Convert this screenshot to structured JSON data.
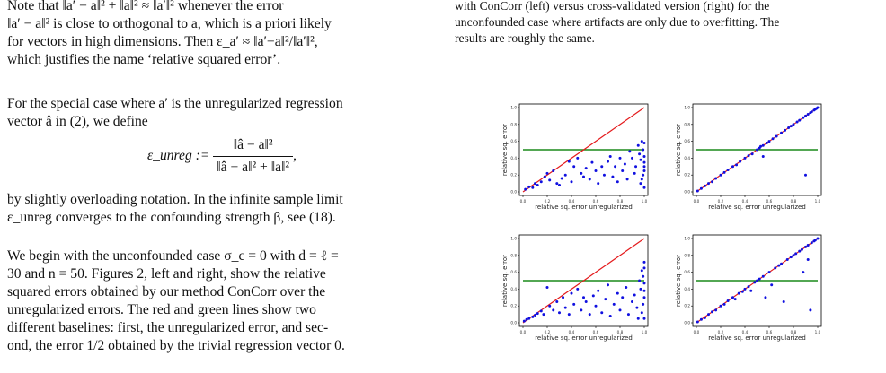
{
  "left": {
    "p1_lines": [
      "Note that ‖a′ − a‖² + ‖a‖² ≈ ‖a′‖² whenever the error",
      "‖a′ − a‖² is close to orthogonal to a, which is a priori likely",
      "for vectors in high dimensions. Then ε_a′ ≈ ‖a′−a‖²/‖a′‖²,",
      "which justifies the name ‘relative squared error’."
    ],
    "p2_lines": [
      "For the special case where a′ is the unregularized regression",
      "vector â in (2), we define"
    ],
    "eq_lhs": "ε_unreg :=",
    "eq_num": "‖â − a‖²",
    "eq_den": "‖â − a‖² + ‖a‖²",
    "eq_tail": ",",
    "p3_lines": [
      "by slightly overloading notation. In the infinite sample limit",
      "ε_unreg converges to the confounding strength β, see (18)."
    ],
    "p4_lines": [
      "We begin with the unconfounded case σ_c = 0 with d = ℓ =",
      "30 and n = 50. Figures 2, left and right, show the relative",
      "squared errors obtained by our method ConCorr over the",
      "unregularized errors. The red and green lines show two",
      "different baselines: first, the unregularized error, and sec-",
      "ond, the error 1/2 obtained by the trivial regression vector 0."
    ]
  },
  "right": {
    "caption_lines": [
      "with ConCorr (left) versus cross-validated version (right) for the",
      "unconfounded case where artifacts are only due to overfitting. The",
      "results are roughly the same."
    ]
  },
  "plot_labels": {
    "xlabel": "relative sq. error unregularized",
    "ylabel": "relative sq. error",
    "ticks": [
      "0.0",
      "0.2",
      "0.4",
      "0.6",
      "0.8",
      "1.0"
    ]
  },
  "colors": {
    "identity_line": "#e41a1c",
    "baseline_line": "#1a8a1a",
    "points": "#1010e0"
  },
  "chart_data": [
    {
      "type": "scatter",
      "xlabel": "relative sq. error unregularized",
      "ylabel": "relative sq. error",
      "xlim": [
        0,
        1
      ],
      "ylim": [
        0,
        1
      ],
      "identity_line": true,
      "baseline_y": 0.5,
      "points": [
        [
          0.02,
          0.03
        ],
        [
          0.05,
          0.06
        ],
        [
          0.08,
          0.05
        ],
        [
          0.1,
          0.1
        ],
        [
          0.12,
          0.08
        ],
        [
          0.15,
          0.12
        ],
        [
          0.18,
          0.18
        ],
        [
          0.2,
          0.22
        ],
        [
          0.22,
          0.14
        ],
        [
          0.25,
          0.25
        ],
        [
          0.28,
          0.1
        ],
        [
          0.3,
          0.08
        ],
        [
          0.32,
          0.16
        ],
        [
          0.35,
          0.2
        ],
        [
          0.38,
          0.36
        ],
        [
          0.4,
          0.12
        ],
        [
          0.42,
          0.3
        ],
        [
          0.45,
          0.4
        ],
        [
          0.48,
          0.22
        ],
        [
          0.5,
          0.18
        ],
        [
          0.52,
          0.28
        ],
        [
          0.55,
          0.15
        ],
        [
          0.57,
          0.35
        ],
        [
          0.6,
          0.25
        ],
        [
          0.62,
          0.1
        ],
        [
          0.65,
          0.3
        ],
        [
          0.67,
          0.2
        ],
        [
          0.7,
          0.36
        ],
        [
          0.72,
          0.42
        ],
        [
          0.74,
          0.18
        ],
        [
          0.76,
          0.3
        ],
        [
          0.78,
          0.12
        ],
        [
          0.8,
          0.4
        ],
        [
          0.82,
          0.25
        ],
        [
          0.84,
          0.33
        ],
        [
          0.86,
          0.15
        ],
        [
          0.88,
          0.48
        ],
        [
          0.9,
          0.4
        ],
        [
          0.92,
          0.22
        ],
        [
          0.93,
          0.3
        ],
        [
          0.95,
          0.55
        ],
        [
          0.96,
          0.45
        ],
        [
          0.97,
          0.38
        ],
        [
          0.98,
          0.6
        ],
        [
          0.99,
          0.5
        ],
        [
          1.0,
          0.42
        ],
        [
          1.0,
          0.35
        ],
        [
          1.0,
          0.3
        ],
        [
          1.0,
          0.25
        ],
        [
          1.0,
          0.58
        ],
        [
          0.99,
          0.2
        ],
        [
          0.98,
          0.15
        ],
        [
          0.97,
          0.1
        ],
        [
          1.0,
          0.05
        ]
      ]
    },
    {
      "type": "scatter",
      "xlabel": "relative sq. error unregularized",
      "ylabel": "relative sq. error",
      "xlim": [
        0,
        1
      ],
      "ylim": [
        0,
        1
      ],
      "identity_line": true,
      "baseline_y": 0.5,
      "points": [
        [
          0.01,
          0.01
        ],
        [
          0.04,
          0.04
        ],
        [
          0.07,
          0.07
        ],
        [
          0.1,
          0.1
        ],
        [
          0.13,
          0.12
        ],
        [
          0.16,
          0.16
        ],
        [
          0.2,
          0.2
        ],
        [
          0.23,
          0.23
        ],
        [
          0.26,
          0.26
        ],
        [
          0.3,
          0.3
        ],
        [
          0.33,
          0.32
        ],
        [
          0.36,
          0.36
        ],
        [
          0.4,
          0.4
        ],
        [
          0.43,
          0.43
        ],
        [
          0.46,
          0.45
        ],
        [
          0.5,
          0.5
        ],
        [
          0.52,
          0.52
        ],
        [
          0.53,
          0.54
        ],
        [
          0.55,
          0.55
        ],
        [
          0.55,
          0.42
        ],
        [
          0.58,
          0.58
        ],
        [
          0.6,
          0.6
        ],
        [
          0.63,
          0.63
        ],
        [
          0.66,
          0.66
        ],
        [
          0.7,
          0.7
        ],
        [
          0.73,
          0.73
        ],
        [
          0.76,
          0.76
        ],
        [
          0.78,
          0.78
        ],
        [
          0.8,
          0.8
        ],
        [
          0.83,
          0.83
        ],
        [
          0.85,
          0.85
        ],
        [
          0.88,
          0.88
        ],
        [
          0.9,
          0.9
        ],
        [
          0.92,
          0.92
        ],
        [
          0.94,
          0.94
        ],
        [
          0.95,
          0.95
        ],
        [
          0.97,
          0.97
        ],
        [
          0.98,
          0.98
        ],
        [
          0.99,
          0.99
        ],
        [
          1.0,
          1.0
        ],
        [
          0.9,
          0.2
        ]
      ]
    },
    {
      "type": "scatter",
      "xlabel": "relative sq. error unregularized",
      "ylabel": "relative sq. error",
      "xlim": [
        0,
        1
      ],
      "ylim": [
        0,
        1
      ],
      "identity_line": true,
      "baseline_y": 0.5,
      "points": [
        [
          0.01,
          0.02
        ],
        [
          0.03,
          0.04
        ],
        [
          0.05,
          0.05
        ],
        [
          0.08,
          0.07
        ],
        [
          0.1,
          0.09
        ],
        [
          0.12,
          0.11
        ],
        [
          0.15,
          0.14
        ],
        [
          0.17,
          0.1
        ],
        [
          0.2,
          0.42
        ],
        [
          0.22,
          0.2
        ],
        [
          0.25,
          0.15
        ],
        [
          0.28,
          0.25
        ],
        [
          0.3,
          0.12
        ],
        [
          0.33,
          0.3
        ],
        [
          0.35,
          0.18
        ],
        [
          0.38,
          0.1
        ],
        [
          0.4,
          0.35
        ],
        [
          0.42,
          0.22
        ],
        [
          0.45,
          0.4
        ],
        [
          0.48,
          0.15
        ],
        [
          0.5,
          0.3
        ],
        [
          0.52,
          0.25
        ],
        [
          0.55,
          0.1
        ],
        [
          0.58,
          0.32
        ],
        [
          0.6,
          0.2
        ],
        [
          0.62,
          0.38
        ],
        [
          0.65,
          0.12
        ],
        [
          0.68,
          0.28
        ],
        [
          0.7,
          0.45
        ],
        [
          0.72,
          0.08
        ],
        [
          0.75,
          0.22
        ],
        [
          0.78,
          0.35
        ],
        [
          0.8,
          0.15
        ],
        [
          0.82,
          0.3
        ],
        [
          0.85,
          0.42
        ],
        [
          0.87,
          0.1
        ],
        [
          0.9,
          0.25
        ],
        [
          0.92,
          0.33
        ],
        [
          0.94,
          0.18
        ],
        [
          0.96,
          0.5
        ],
        [
          0.97,
          0.4
        ],
        [
          0.98,
          0.62
        ],
        [
          0.99,
          0.55
        ],
        [
          1.0,
          0.47
        ],
        [
          1.0,
          0.38
        ],
        [
          1.0,
          0.3
        ],
        [
          1.0,
          0.72
        ],
        [
          1.0,
          0.65
        ],
        [
          0.99,
          0.22
        ],
        [
          0.98,
          0.12
        ],
        [
          1.0,
          0.05
        ],
        [
          0.95,
          0.05
        ]
      ]
    },
    {
      "type": "scatter",
      "xlabel": "relative sq. error unregularized",
      "ylabel": "relative sq. error",
      "xlim": [
        0,
        1
      ],
      "ylim": [
        0,
        1
      ],
      "identity_line": true,
      "baseline_y": 0.5,
      "points": [
        [
          0.01,
          0.01
        ],
        [
          0.04,
          0.04
        ],
        [
          0.07,
          0.06
        ],
        [
          0.1,
          0.1
        ],
        [
          0.13,
          0.13
        ],
        [
          0.16,
          0.15
        ],
        [
          0.2,
          0.2
        ],
        [
          0.23,
          0.22
        ],
        [
          0.26,
          0.26
        ],
        [
          0.3,
          0.3
        ],
        [
          0.32,
          0.28
        ],
        [
          0.35,
          0.35
        ],
        [
          0.38,
          0.37
        ],
        [
          0.4,
          0.4
        ],
        [
          0.43,
          0.43
        ],
        [
          0.45,
          0.38
        ],
        [
          0.48,
          0.48
        ],
        [
          0.5,
          0.5
        ],
        [
          0.52,
          0.52
        ],
        [
          0.55,
          0.55
        ],
        [
          0.57,
          0.3
        ],
        [
          0.6,
          0.6
        ],
        [
          0.62,
          0.45
        ],
        [
          0.65,
          0.65
        ],
        [
          0.68,
          0.68
        ],
        [
          0.7,
          0.7
        ],
        [
          0.72,
          0.25
        ],
        [
          0.75,
          0.75
        ],
        [
          0.78,
          0.78
        ],
        [
          0.8,
          0.8
        ],
        [
          0.82,
          0.82
        ],
        [
          0.85,
          0.85
        ],
        [
          0.87,
          0.87
        ],
        [
          0.9,
          0.9
        ],
        [
          0.92,
          0.92
        ],
        [
          0.94,
          0.15
        ],
        [
          0.95,
          0.95
        ],
        [
          0.97,
          0.97
        ],
        [
          0.98,
          0.98
        ],
        [
          1.0,
          1.0
        ],
        [
          0.88,
          0.6
        ],
        [
          0.92,
          0.75
        ]
      ]
    }
  ]
}
